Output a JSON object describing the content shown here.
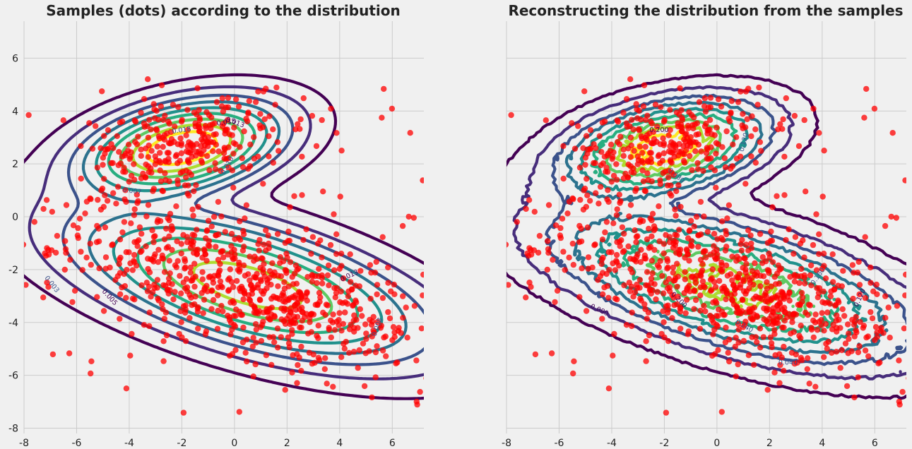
{
  "chart_data": [
    {
      "type": "scatter",
      "title": "Samples (dots) according to the distribution",
      "xlabel": "",
      "ylabel": "",
      "xlim": [
        -8,
        7.2
      ],
      "ylim": [
        -8.2,
        7.4
      ],
      "x_ticks": [
        -8,
        -6,
        -4,
        -2,
        0,
        2,
        4,
        6
      ],
      "y_ticks": [
        -8,
        -6,
        -4,
        -2,
        0,
        2,
        4,
        6
      ],
      "grid": true,
      "marker_color": "#ff0000",
      "contour_colormap": "viridis",
      "components": [
        {
          "mean": [
            -2,
            2.6
          ],
          "sigma_major": 2.0,
          "sigma_minor": 0.85,
          "angle_deg": 12
        },
        {
          "mean": [
            0.5,
            -2.6
          ],
          "sigma_major": 3.6,
          "sigma_minor": 1.15,
          "angle_deg": -16
        }
      ],
      "contour_labels": [
        {
          "x": -7.0,
          "y": -2.6,
          "text": "0.003",
          "angle": 52
        },
        {
          "x": -4.8,
          "y": -3.1,
          "text": "0.005",
          "angle": 48
        },
        {
          "x": -3.9,
          "y": 0.9,
          "text": "0.007",
          "angle": 8
        },
        {
          "x": -0.3,
          "y": 3.5,
          "text": "0.015",
          "angle": -8
        },
        {
          "x": -2.0,
          "y": 3.2,
          "text": "0.018",
          "angle": -8
        },
        {
          "x": 0.0,
          "y": 3.5,
          "text": "0.013",
          "angle": 20
        },
        {
          "x": -0.2,
          "y": 1.9,
          "text": "0.010",
          "angle": -60
        },
        {
          "x": 4.4,
          "y": -2.3,
          "text": "0.013",
          "angle": -25
        },
        {
          "x": 5.5,
          "y": -4.2,
          "text": "0.008",
          "angle": -70
        }
      ],
      "samples": {
        "cluster_a": {
          "n": 300,
          "seed": 7
        },
        "cluster_b": {
          "n": 720,
          "seed": 11
        },
        "background": {
          "n": 70,
          "seed": 13
        }
      }
    },
    {
      "type": "scatter",
      "title": "Reconstructing the distribution from the samples",
      "xlabel": "",
      "ylabel": "",
      "xlim": [
        -8,
        7.2
      ],
      "ylim": [
        -8.2,
        7.4
      ],
      "x_ticks": [
        -8,
        -6,
        -4,
        -2,
        0,
        2,
        4,
        6
      ],
      "y_ticks": [],
      "grid": true,
      "marker_color": "#ff0000",
      "contour_colormap": "viridis",
      "contour_labels": [
        {
          "x": 2.7,
          "y": -5.6,
          "text": "0.040",
          "angle": 0
        },
        {
          "x": -4.5,
          "y": -3.6,
          "text": "0.080",
          "angle": 25
        },
        {
          "x": 1.1,
          "y": 2.8,
          "text": "0.120",
          "angle": -75
        },
        {
          "x": -2.2,
          "y": 3.2,
          "text": "0.200",
          "angle": 0
        },
        {
          "x": -1.6,
          "y": 1.5,
          "text": "0.080",
          "angle": 40
        },
        {
          "x": -1.5,
          "y": -3.2,
          "text": "0.200",
          "angle": 45
        },
        {
          "x": 3.9,
          "y": -2.3,
          "text": "0.160",
          "angle": -55
        },
        {
          "x": 5.5,
          "y": -3.1,
          "text": "0.120",
          "angle": -65
        },
        {
          "x": 1.0,
          "y": -4.2,
          "text": "0.240",
          "angle": 30
        }
      ]
    }
  ]
}
